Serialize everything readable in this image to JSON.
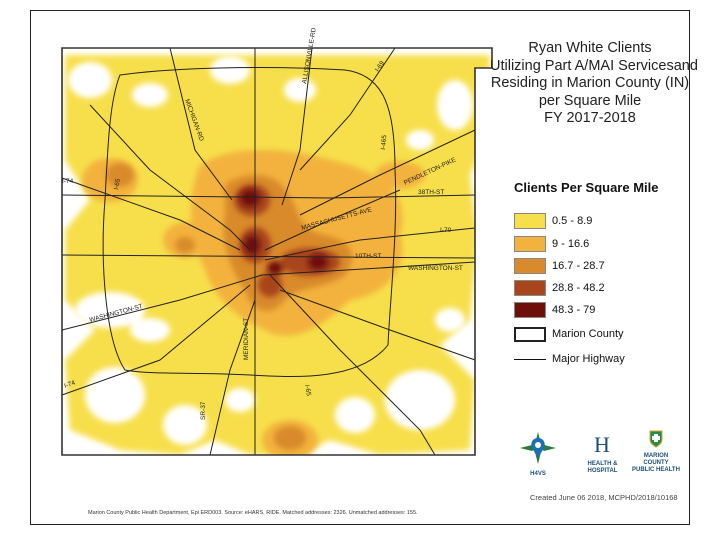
{
  "title_lines": [
    "Ryan White Clients",
    "Utilizing Part A/MAI Servicesand",
    "Residing in Marion County (IN)",
    "per Square Mile",
    "FY 2017-2018"
  ],
  "legend": {
    "title": "Clients Per Square Mile",
    "classes": [
      {
        "label": "0.5 - 8.9",
        "color": "#f7df4b"
      },
      {
        "label": "9 - 16.6",
        "color": "#f3b23e"
      },
      {
        "label": "16.7 - 28.7",
        "color": "#d98a2c"
      },
      {
        "label": "28.8 - 48.2",
        "color": "#a8451c"
      },
      {
        "label": "48.3 - 79",
        "color": "#6e0f0c"
      }
    ],
    "county_label": "Marion County",
    "highway_label": "Major Highway"
  },
  "road_labels": [
    "MICHIGAN-RD",
    "ALLISONVILLE-RD",
    "I-69",
    "PENDLETON-PIKE",
    "I-465",
    "I-74",
    "I-65",
    "MASSACHUSETTS-AVE",
    "38TH-ST",
    "I-70",
    "10TH-ST",
    "WASHINGTON-ST",
    "WASHINGTON-ST",
    "MERIDIAN-ST",
    "I-65",
    "SR-37",
    "I-74"
  ],
  "logos": {
    "h4vs": "H4VS",
    "hhc": "HEALTH & HOSPITAL",
    "mcphd": "MARION COUNTY PUBLIC HEALTH"
  },
  "created_note": "Created June 06 2018, MCPHD/2018/10168",
  "source_note": "Marion County Public Health Department, Epi ERD003. Source: eHARS, RIDE. Matched addresses: 2326. Unmatched addresses: 155.",
  "colors": {
    "frame": "#222222",
    "highway": "#222222",
    "county": "#333333"
  }
}
